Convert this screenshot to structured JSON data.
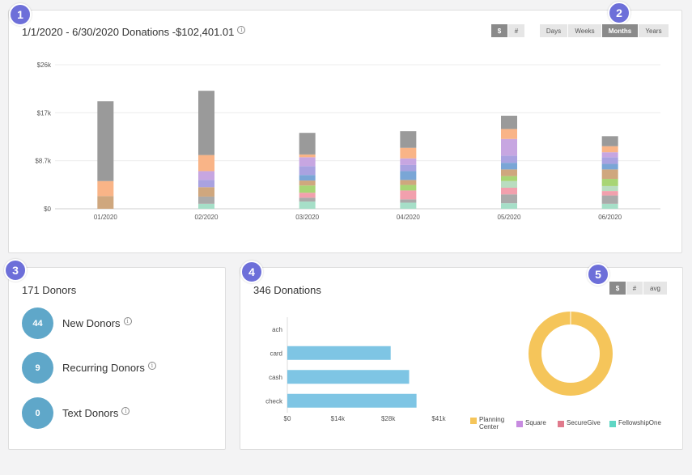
{
  "badges": [
    "1",
    "2",
    "3",
    "4",
    "5"
  ],
  "top": {
    "title": "1/1/2020 - 6/30/2020 Donations -$102,401.01",
    "info_icon": "i",
    "mode_buttons": [
      "$",
      "#"
    ],
    "period_buttons": [
      "Days",
      "Weeks",
      "Months",
      "Years"
    ],
    "active_mode": "$",
    "active_period": "Months"
  },
  "chart_data": [
    {
      "type": "bar",
      "stacked": true,
      "categories": [
        "01/2020",
        "02/2020",
        "03/2020",
        "04/2020",
        "05/2020",
        "06/2020"
      ],
      "y_ticks": [
        "$0",
        "$8.7k",
        "$17k",
        "$26k"
      ],
      "ylim": [
        0,
        26000
      ],
      "series_colors": [
        "#a6dfc8",
        "#aaaaaa",
        "#f2a0ad",
        "#7ec5e4",
        "#b9ddc0",
        "#a8d575",
        "#cfa77e",
        "#7aa6d6",
        "#a9a2e0",
        "#c7a6e1",
        "#f9b487",
        "#9a9a9a"
      ],
      "stacks": [
        [
          0,
          0,
          0,
          0,
          0,
          0,
          2300,
          0,
          0,
          0,
          2700,
          14400
        ],
        [
          900,
          1300,
          0,
          0,
          0,
          0,
          1700,
          0,
          1300,
          1600,
          2900,
          11600
        ],
        [
          1300,
          700,
          900,
          0,
          0,
          1300,
          900,
          1000,
          1600,
          1600,
          500,
          3900
        ],
        [
          1100,
          600,
          1600,
          0,
          0,
          1000,
          900,
          1600,
          1100,
          1200,
          1900,
          3000
        ],
        [
          1000,
          1600,
          1200,
          0,
          1200,
          900,
          1200,
          1200,
          1300,
          3000,
          1800,
          2400
        ],
        [
          900,
          1500,
          800,
          0,
          900,
          1300,
          1700,
          1000,
          1200,
          900,
          1100,
          1800
        ]
      ]
    },
    {
      "type": "bar",
      "orientation": "horizontal",
      "categories": [
        "ach",
        "card",
        "cash",
        "check"
      ],
      "values": [
        0,
        28000,
        33000,
        35000
      ],
      "x_ticks": [
        "$0",
        "$14k",
        "$28k",
        "$41k"
      ],
      "xlim": [
        0,
        41000
      ],
      "color": "#7ec5e4"
    },
    {
      "type": "pie",
      "donut": true,
      "labels": [
        "Planning Center",
        "Square",
        "SecureGive",
        "FellowshipOne"
      ],
      "values": [
        100,
        0,
        0,
        0
      ],
      "colors": [
        "#f5c55a",
        "#c78be0",
        "#e07a8c",
        "#5fd6c4"
      ]
    }
  ],
  "donors": {
    "title": "171 Donors",
    "rows": [
      {
        "count": "44",
        "label": "New Donors"
      },
      {
        "count": "9",
        "label": "Recurring Donors"
      },
      {
        "count": "0",
        "label": "Text Donors"
      }
    ]
  },
  "donations": {
    "title": "346 Donations",
    "mode_buttons": [
      "$",
      "#",
      "avg"
    ],
    "active_mode": "$",
    "legend": [
      {
        "label": "Planning Center",
        "color": "#f5c55a"
      },
      {
        "label": "Square",
        "color": "#c78be0"
      },
      {
        "label": "SecureGive",
        "color": "#e07a8c"
      },
      {
        "label": "FellowshipOne",
        "color": "#5fd6c4"
      }
    ]
  }
}
